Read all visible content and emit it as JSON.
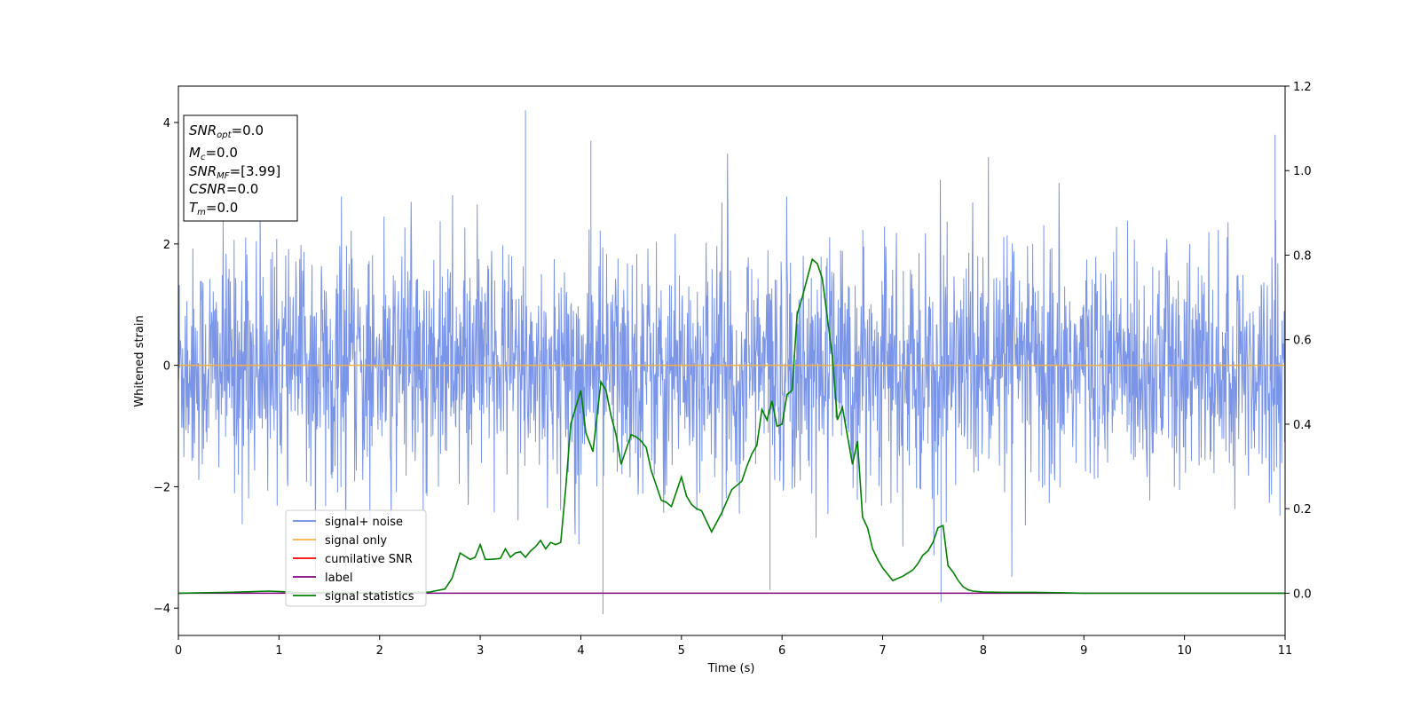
{
  "chart_data": {
    "type": "line",
    "xlabel": "Time (s)",
    "ylabel": "Whitened strain",
    "xlim": [
      0,
      11
    ],
    "ylim": [
      -4.45,
      4.6
    ],
    "y2lim": [
      -0.1,
      1.2
    ],
    "xticks": [
      0,
      1,
      2,
      3,
      4,
      5,
      6,
      7,
      8,
      9,
      10,
      11
    ],
    "yticks": [
      -4,
      -2,
      0,
      2,
      4
    ],
    "y2ticks": [
      "0.0",
      "0.2",
      "0.4",
      "0.6",
      "0.8",
      "1.0",
      "1.2"
    ],
    "grid": false,
    "legend_position": "lower-left",
    "colors": {
      "noise": "#6b8ae5",
      "signal": "#f5b041",
      "cumulative": "#ff0000",
      "label": "#800080",
      "statistics": "#008000"
    },
    "series": [
      {
        "name": "signal+ noise",
        "color": "#6b8ae5",
        "axis": "left",
        "kind": "noise",
        "envelope": 1.8,
        "spike_max": 4.2,
        "spike_min": -4.1
      },
      {
        "name": "signal only",
        "color": "#f5b041",
        "axis": "left",
        "constant": 0
      },
      {
        "name": "cumilative SNR",
        "color": "#ff0000",
        "axis": "right",
        "constant": 0
      },
      {
        "name": "label",
        "color": "#800080",
        "axis": "right",
        "constant": 0
      },
      {
        "name": "signal statistics",
        "color": "#008000",
        "axis": "right",
        "x": [
          0,
          0.5,
          0.9,
          1.2,
          1.8,
          2.2,
          2.5,
          2.65,
          2.72,
          2.8,
          2.9,
          2.95,
          3.0,
          3.05,
          3.1,
          3.2,
          3.25,
          3.3,
          3.35,
          3.4,
          3.45,
          3.5,
          3.55,
          3.6,
          3.65,
          3.7,
          3.75,
          3.8,
          3.85,
          3.9,
          4.0,
          4.05,
          4.12,
          4.2,
          4.25,
          4.3,
          4.35,
          4.4,
          4.5,
          4.55,
          4.6,
          4.65,
          4.7,
          4.75,
          4.8,
          4.85,
          4.9,
          5.0,
          5.05,
          5.1,
          5.15,
          5.2,
          5.3,
          5.4,
          5.5,
          5.6,
          5.65,
          5.7,
          5.75,
          5.8,
          5.85,
          5.9,
          5.95,
          6.0,
          6.05,
          6.1,
          6.15,
          6.2,
          6.3,
          6.35,
          6.4,
          6.5,
          6.55,
          6.6,
          6.7,
          6.75,
          6.8,
          6.85,
          6.9,
          6.95,
          7.0,
          7.05,
          7.1,
          7.2,
          7.3,
          7.35,
          7.4,
          7.45,
          7.5,
          7.55,
          7.6,
          7.65,
          7.7,
          7.75,
          7.8,
          7.85,
          7.9,
          8.0,
          8.2,
          8.5,
          8.8,
          9.0,
          9.5,
          10.0,
          10.5,
          11.0
        ],
        "y": [
          0.0,
          0.002,
          0.005,
          0.002,
          0.001,
          0.001,
          0.003,
          0.01,
          0.035,
          0.095,
          0.08,
          0.085,
          0.115,
          0.08,
          0.08,
          0.082,
          0.105,
          0.085,
          0.095,
          0.098,
          0.085,
          0.1,
          0.11,
          0.125,
          0.105,
          0.12,
          0.115,
          0.12,
          0.25,
          0.4,
          0.48,
          0.38,
          0.335,
          0.5,
          0.48,
          0.42,
          0.375,
          0.305,
          0.375,
          0.37,
          0.36,
          0.345,
          0.29,
          0.255,
          0.22,
          0.215,
          0.205,
          0.275,
          0.23,
          0.21,
          0.2,
          0.195,
          0.145,
          0.19,
          0.245,
          0.265,
          0.3,
          0.33,
          0.35,
          0.435,
          0.41,
          0.455,
          0.395,
          0.4,
          0.47,
          0.48,
          0.66,
          0.7,
          0.79,
          0.78,
          0.745,
          0.56,
          0.41,
          0.44,
          0.305,
          0.36,
          0.18,
          0.155,
          0.105,
          0.08,
          0.06,
          0.045,
          0.03,
          0.04,
          0.055,
          0.07,
          0.09,
          0.1,
          0.12,
          0.155,
          0.16,
          0.065,
          0.05,
          0.03,
          0.015,
          0.008,
          0.005,
          0.003,
          0.002,
          0.002,
          0.001,
          0.0,
          0.0,
          0.0,
          0.0,
          0.0
        ]
      }
    ],
    "info_box": [
      {
        "main": "SNR",
        "sub": "opt",
        "value": "=0.0"
      },
      {
        "main": "M",
        "sub": "c",
        "value": "=0.0"
      },
      {
        "main": "SNR",
        "sub": "MF",
        "value": "=[3.99]"
      },
      {
        "main": "CSNR",
        "sub": "",
        "value": "=0.0"
      },
      {
        "main": "T",
        "sub": "m",
        "value": "=0.0"
      }
    ]
  }
}
